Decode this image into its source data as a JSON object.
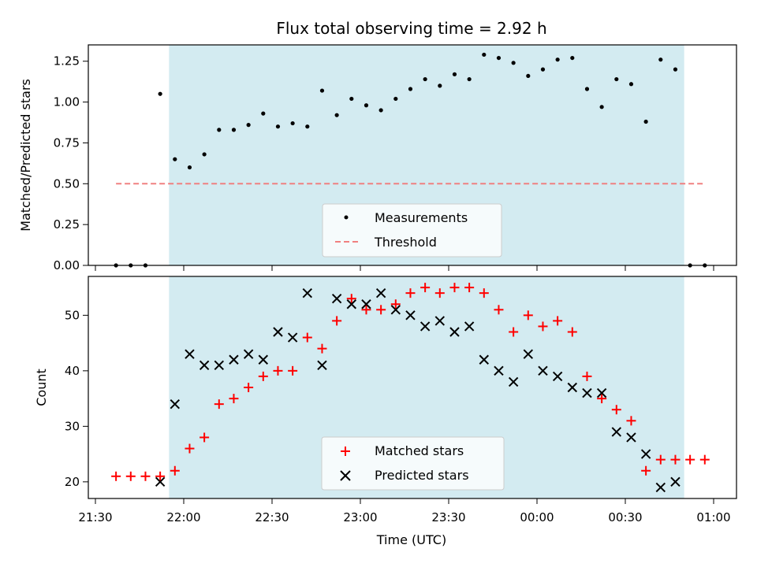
{
  "chart_data": [
    {
      "type": "scatter",
      "title": "Flux total observing time = 2.92 h",
      "ylabel": "Matched/Predicted stars",
      "ylim": [
        0,
        1.35
      ],
      "yticks": [
        0.0,
        0.25,
        0.5,
        0.75,
        1.0,
        1.25
      ],
      "ytick_labels": [
        "0.00",
        "0.25",
        "0.50",
        "0.75",
        "1.00",
        "1.25"
      ],
      "observing_window": {
        "start": "21:55",
        "end": "00:50"
      },
      "threshold": {
        "name": "Threshold",
        "value": 0.5,
        "x_start": "21:37",
        "x_end": "00:57",
        "color": "#f08080"
      },
      "series": [
        {
          "name": "Measurements",
          "color": "#000000",
          "x": [
            "21:37",
            "21:42",
            "21:47",
            "21:52",
            "21:57",
            "22:02",
            "22:07",
            "22:12",
            "22:17",
            "22:22",
            "22:27",
            "22:32",
            "22:37",
            "22:42",
            "22:47",
            "22:52",
            "22:57",
            "23:02",
            "23:07",
            "23:12",
            "23:17",
            "23:22",
            "23:27",
            "23:32",
            "23:37",
            "23:42",
            "23:47",
            "23:52",
            "23:57",
            "00:02",
            "00:07",
            "00:12",
            "00:17",
            "00:22",
            "00:27",
            "00:32",
            "00:37",
            "00:42",
            "00:47",
            "00:52",
            "00:57"
          ],
          "y": [
            0.0,
            0.0,
            0.0,
            1.05,
            0.65,
            0.6,
            0.68,
            0.83,
            0.83,
            0.86,
            0.93,
            0.85,
            0.87,
            0.85,
            1.07,
            0.92,
            1.02,
            0.98,
            0.95,
            1.02,
            1.08,
            1.14,
            1.1,
            1.17,
            1.14,
            1.29,
            1.27,
            1.24,
            1.16,
            1.2,
            1.26,
            1.27,
            1.08,
            0.97,
            1.14,
            1.11,
            0.88,
            1.26,
            1.2,
            0.0,
            0.0
          ]
        }
      ],
      "legend": {
        "placement": "lower-center",
        "entries": [
          "Measurements",
          "Threshold"
        ]
      }
    },
    {
      "type": "scatter",
      "xlabel": "Time (UTC)",
      "ylabel": "Count",
      "ylim": [
        17,
        57
      ],
      "yticks": [
        20,
        30,
        40,
        50
      ],
      "ytick_labels": [
        "20",
        "30",
        "40",
        "50"
      ],
      "xticks": [
        "21:30",
        "22:00",
        "22:30",
        "23:00",
        "23:30",
        "00:00",
        "00:30",
        "01:00"
      ],
      "xlim": [
        "21:30",
        "01:00"
      ],
      "series": [
        {
          "name": "Matched stars",
          "marker": "plus",
          "color": "#ff0000",
          "x": [
            "21:37",
            "21:42",
            "21:47",
            "21:52",
            "21:57",
            "22:02",
            "22:07",
            "22:12",
            "22:17",
            "22:22",
            "22:27",
            "22:32",
            "22:37",
            "22:42",
            "22:47",
            "22:52",
            "22:57",
            "23:02",
            "23:07",
            "23:12",
            "23:17",
            "23:22",
            "23:27",
            "23:32",
            "23:37",
            "23:42",
            "23:47",
            "23:52",
            "23:57",
            "00:02",
            "00:07",
            "00:12",
            "00:17",
            "00:22",
            "00:27",
            "00:32",
            "00:37",
            "00:42",
            "00:47",
            "00:52",
            "00:57"
          ],
          "y": [
            21,
            21,
            21,
            21,
            22,
            26,
            28,
            34,
            35,
            37,
            39,
            40,
            40,
            46,
            44,
            49,
            53,
            51,
            51,
            52,
            54,
            55,
            54,
            55,
            55,
            54,
            51,
            47,
            50,
            48,
            49,
            47,
            39,
            35,
            33,
            31,
            22,
            24,
            24,
            24,
            24
          ]
        },
        {
          "name": "Predicted stars",
          "marker": "x",
          "color": "#000000",
          "x": [
            "21:52",
            "21:57",
            "22:02",
            "22:07",
            "22:12",
            "22:17",
            "22:22",
            "22:27",
            "22:32",
            "22:37",
            "22:42",
            "22:47",
            "22:52",
            "22:57",
            "23:02",
            "23:07",
            "23:12",
            "23:17",
            "23:22",
            "23:27",
            "23:32",
            "23:37",
            "23:42",
            "23:47",
            "23:52",
            "23:57",
            "00:02",
            "00:07",
            "00:12",
            "00:17",
            "00:22",
            "00:27",
            "00:32",
            "00:37",
            "00:42",
            "00:47"
          ],
          "y": [
            20,
            34,
            43,
            41,
            41,
            42,
            43,
            42,
            47,
            46,
            54,
            41,
            53,
            52,
            52,
            54,
            51,
            50,
            48,
            49,
            47,
            48,
            42,
            40,
            38,
            43,
            40,
            39,
            37,
            36,
            36,
            29,
            28,
            25,
            19,
            20
          ]
        }
      ],
      "legend": {
        "placement": "lower-center",
        "entries": [
          "Matched stars",
          "Predicted stars"
        ]
      }
    }
  ],
  "colors": {
    "window_fill": "#d3ebf1",
    "threshold": "#f08080",
    "matched": "#ff0000",
    "predicted": "#000000"
  }
}
